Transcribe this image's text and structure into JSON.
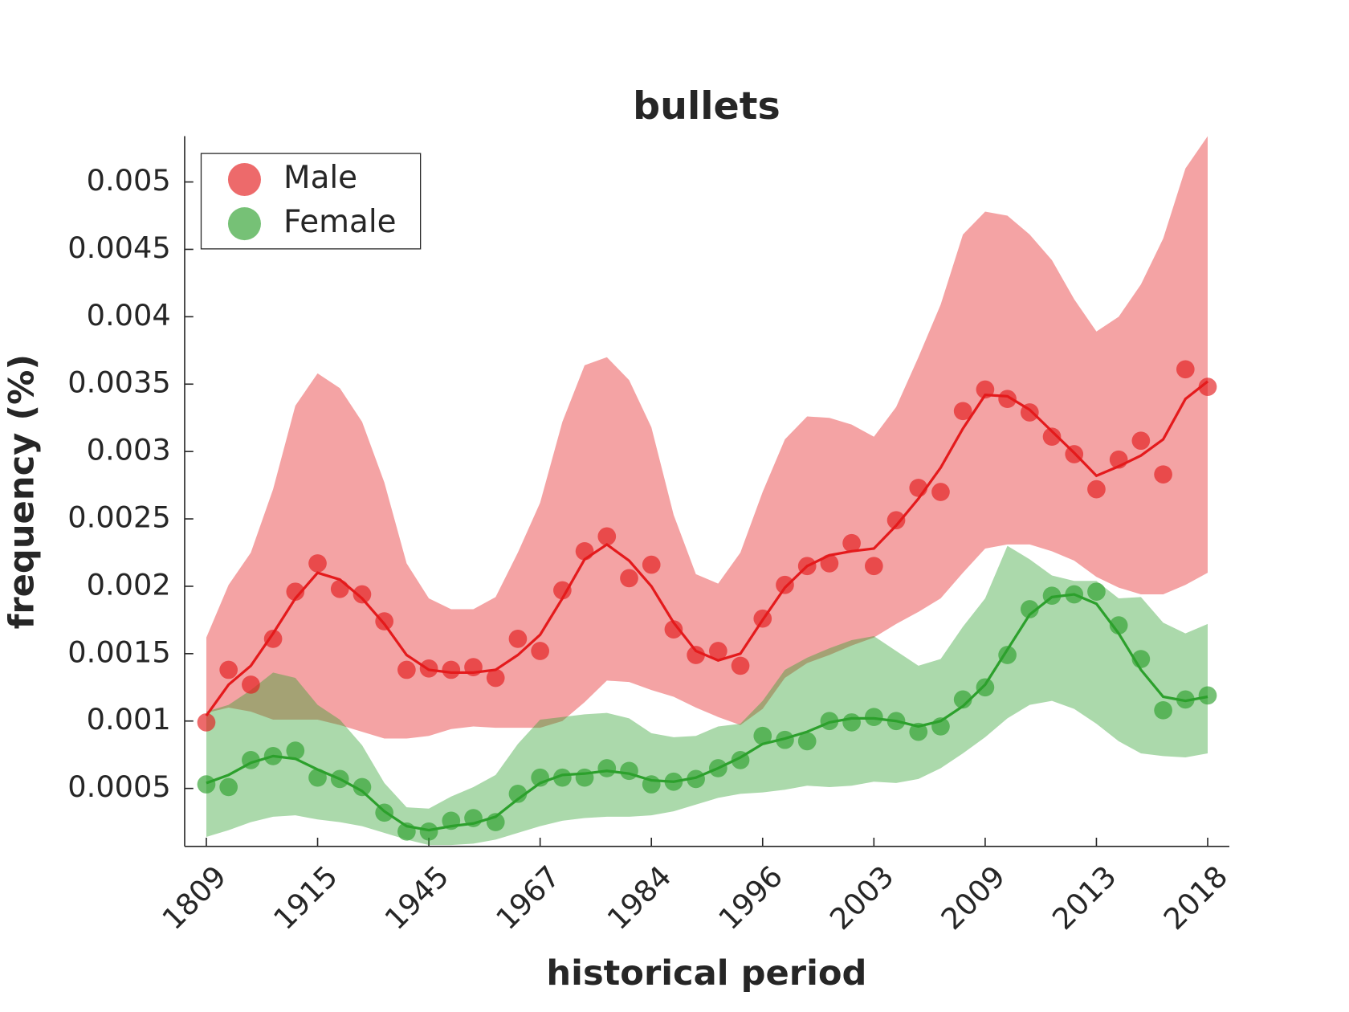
{
  "chart_data": {
    "type": "line",
    "title": "bullets",
    "x_label": "historical period",
    "y_label": "frequency (%)",
    "categories": [
      "1809",
      null,
      null,
      null,
      null,
      "1915",
      null,
      null,
      null,
      null,
      "1945",
      null,
      null,
      null,
      null,
      "1967",
      null,
      null,
      null,
      null,
      "1984",
      null,
      null,
      null,
      null,
      "1996",
      null,
      null,
      null,
      null,
      "2003",
      null,
      null,
      null,
      null,
      "2009",
      null,
      null,
      null,
      null,
      "2013",
      null,
      null,
      null,
      null,
      "2018"
    ],
    "ylim": [
      7e-05,
      0.00534
    ],
    "yticks": [
      0.0005,
      0.001,
      0.0015,
      0.002,
      0.0025,
      0.003,
      0.0035,
      0.004,
      0.0045,
      0.005
    ],
    "grid": false,
    "legend": "upper left",
    "series": [
      {
        "name": "Male",
        "color": "#e41a1c",
        "values": [
          0.00099,
          0.00138,
          0.00127,
          0.00161,
          0.00196,
          0.00217,
          0.00198,
          0.00194,
          0.00174,
          0.00138,
          0.00139,
          0.00138,
          0.0014,
          0.00132,
          0.00161,
          0.00152,
          0.00197,
          0.00226,
          0.00237,
          0.00206,
          0.00216,
          0.00168,
          0.00149,
          0.00152,
          0.00141,
          0.00176,
          0.00201,
          0.00215,
          0.00217,
          0.00232,
          0.00215,
          0.00249,
          0.00273,
          0.0027,
          0.0033,
          0.00346,
          0.00339,
          0.00329,
          0.00311,
          0.00298,
          0.00272,
          0.00294,
          0.00308,
          0.00283,
          0.00361,
          0.00348
        ],
        "smoothed": [
          0.00104,
          0.00127,
          0.00141,
          0.00165,
          0.00191,
          0.0021,
          0.00205,
          0.00191,
          0.00172,
          0.00149,
          0.00138,
          0.00136,
          0.00136,
          0.00138,
          0.00149,
          0.00164,
          0.00191,
          0.0022,
          0.00231,
          0.00219,
          0.002,
          0.00173,
          0.00152,
          0.00145,
          0.0015,
          0.00175,
          0.00199,
          0.00215,
          0.00223,
          0.00226,
          0.00228,
          0.00245,
          0.00265,
          0.00288,
          0.00317,
          0.00342,
          0.00341,
          0.00331,
          0.00315,
          0.00299,
          0.00282,
          0.00289,
          0.00297,
          0.00309,
          0.00339,
          0.00352
        ],
        "band_upper": [
          0.00162,
          0.00201,
          0.00225,
          0.00272,
          0.00334,
          0.00358,
          0.00347,
          0.00322,
          0.00277,
          0.00217,
          0.00191,
          0.00183,
          0.00183,
          0.00192,
          0.00225,
          0.00262,
          0.00322,
          0.00364,
          0.0037,
          0.00353,
          0.00318,
          0.00253,
          0.00209,
          0.00202,
          0.00225,
          0.0027,
          0.00309,
          0.00326,
          0.00325,
          0.0032,
          0.00311,
          0.00333,
          0.0037,
          0.00409,
          0.00461,
          0.00478,
          0.00475,
          0.00461,
          0.00442,
          0.00413,
          0.00389,
          0.004,
          0.00424,
          0.00458,
          0.0051,
          0.00534
        ],
        "band_lower": [
          0.00106,
          0.0011,
          0.00107,
          0.00101,
          0.00101,
          0.00101,
          0.00097,
          0.00092,
          0.00087,
          0.00087,
          0.00089,
          0.00094,
          0.00096,
          0.00095,
          0.00095,
          0.00095,
          0.001,
          0.00114,
          0.0013,
          0.00129,
          0.00123,
          0.00118,
          0.0011,
          0.00103,
          0.00097,
          0.00109,
          0.00132,
          0.00143,
          0.00149,
          0.00156,
          0.00162,
          0.00172,
          0.00181,
          0.00191,
          0.0021,
          0.00228,
          0.00231,
          0.00231,
          0.00226,
          0.00219,
          0.00207,
          0.00199,
          0.00194,
          0.00194,
          0.00201,
          0.0021
        ]
      },
      {
        "name": "Female",
        "color": "#2ca02c",
        "values": [
          0.00053,
          0.00051,
          0.00071,
          0.00074,
          0.00078,
          0.00058,
          0.00057,
          0.00051,
          0.00032,
          0.00018,
          0.00018,
          0.00026,
          0.00028,
          0.00025,
          0.00046,
          0.00058,
          0.00058,
          0.00058,
          0.00065,
          0.00063,
          0.00053,
          0.00055,
          0.00057,
          0.00065,
          0.00071,
          0.00089,
          0.00086,
          0.00085,
          0.001,
          0.00099,
          0.00103,
          0.001,
          0.00092,
          0.00096,
          0.00116,
          0.00125,
          0.00149,
          0.00183,
          0.00193,
          0.00194,
          0.00196,
          0.00171,
          0.00146,
          0.00108,
          0.00116,
          0.00119
        ],
        "smoothed": [
          0.00054,
          0.0006,
          0.00069,
          0.00074,
          0.00072,
          0.00064,
          0.00057,
          0.00048,
          0.00033,
          0.00022,
          0.00019,
          0.00022,
          0.00024,
          0.00029,
          0.00042,
          0.00054,
          0.0006,
          0.00061,
          0.00063,
          0.00061,
          0.00056,
          0.00055,
          0.00058,
          0.00065,
          0.00073,
          0.00083,
          0.00087,
          0.00092,
          0.00099,
          0.00102,
          0.00102,
          0.001,
          0.00096,
          0.001,
          0.00111,
          0.00127,
          0.00153,
          0.00179,
          0.00192,
          0.00194,
          0.00187,
          0.00165,
          0.00138,
          0.00118,
          0.00115,
          0.00118
        ],
        "band_upper": [
          0.00107,
          0.00112,
          0.00123,
          0.00136,
          0.00132,
          0.00112,
          0.00101,
          0.00082,
          0.00054,
          0.00036,
          0.00035,
          0.00044,
          0.00051,
          0.0006,
          0.00083,
          0.00101,
          0.00103,
          0.00105,
          0.00106,
          0.00102,
          0.00091,
          0.00088,
          0.00089,
          0.00096,
          0.00098,
          0.00115,
          0.00138,
          0.00147,
          0.00154,
          0.0016,
          0.00163,
          0.00152,
          0.00141,
          0.00146,
          0.0017,
          0.00191,
          0.0023,
          0.0022,
          0.00208,
          0.00204,
          0.00204,
          0.00191,
          0.00192,
          0.00173,
          0.00165,
          0.00172
        ],
        "band_lower": [
          0.00014,
          0.00019,
          0.00025,
          0.00029,
          0.0003,
          0.00027,
          0.00025,
          0.00022,
          0.00017,
          0.00012,
          8e-05,
          8e-05,
          9e-05,
          0.00012,
          0.00017,
          0.00022,
          0.00026,
          0.00028,
          0.00029,
          0.00029,
          0.0003,
          0.00033,
          0.00038,
          0.00043,
          0.00046,
          0.00047,
          0.00049,
          0.00052,
          0.00051,
          0.00052,
          0.00055,
          0.00054,
          0.00057,
          0.00065,
          0.00076,
          0.00088,
          0.00102,
          0.00112,
          0.00115,
          0.00109,
          0.00098,
          0.00085,
          0.00076,
          0.00074,
          0.00073,
          0.00076
        ]
      }
    ]
  }
}
